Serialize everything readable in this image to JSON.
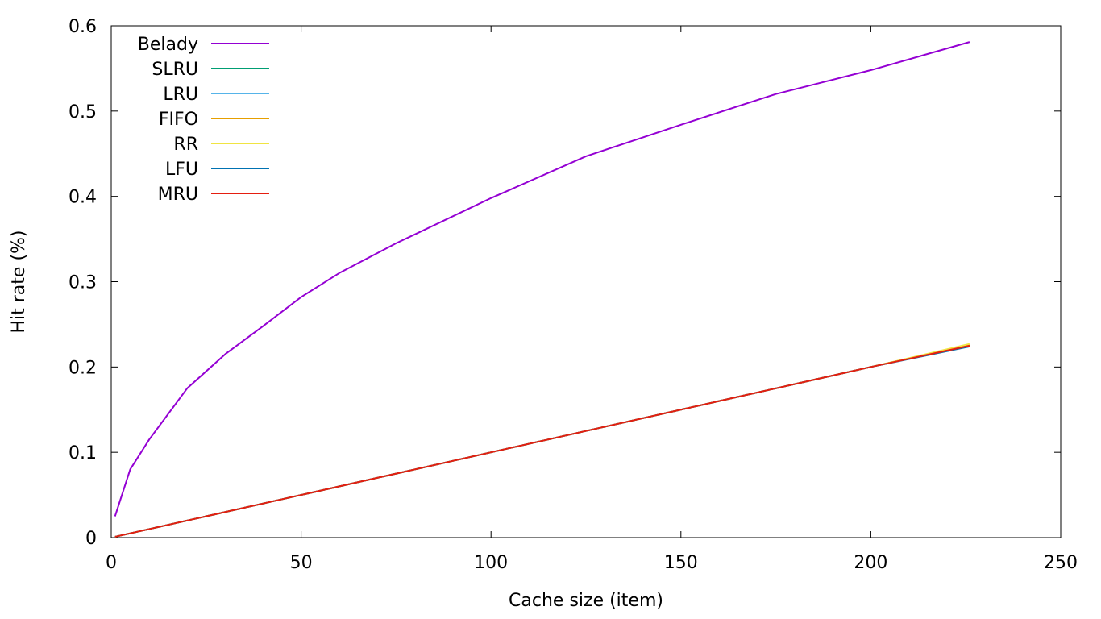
{
  "chart_data": {
    "type": "line",
    "title": "",
    "xlabel": "Cache size (item)",
    "ylabel": "Hit rate (%)",
    "xlim": [
      0,
      250
    ],
    "ylim": [
      0,
      0.6
    ],
    "xticks": [
      0,
      50,
      100,
      150,
      200,
      250
    ],
    "yticks": [
      0,
      0.1,
      0.2,
      0.3,
      0.4,
      0.5,
      0.6
    ],
    "xtick_labels": [
      "0",
      "50",
      "100",
      "150",
      "200",
      "250"
    ],
    "ytick_labels": [
      "0",
      "0.1",
      "0.2",
      "0.3",
      "0.4",
      "0.5",
      "0.6"
    ],
    "grid": false,
    "legend_position": "top-left",
    "x": [
      1,
      5,
      10,
      20,
      30,
      40,
      50,
      60,
      75,
      100,
      125,
      150,
      175,
      200,
      226
    ],
    "series": [
      {
        "name": "Belady",
        "color": "#9400d3",
        "values": [
          0.025,
          0.08,
          0.115,
          0.175,
          0.215,
          0.248,
          0.282,
          0.31,
          0.345,
          0.398,
          0.447,
          0.484,
          0.52,
          0.548,
          0.581
        ]
      },
      {
        "name": "SLRU",
        "color": "#009e73",
        "values": [
          0.001,
          0.005,
          0.01,
          0.02,
          0.03,
          0.04,
          0.05,
          0.06,
          0.075,
          0.1,
          0.125,
          0.15,
          0.175,
          0.2,
          0.226
        ]
      },
      {
        "name": "LRU",
        "color": "#56b4e9",
        "values": [
          0.001,
          0.005,
          0.01,
          0.02,
          0.03,
          0.04,
          0.05,
          0.06,
          0.075,
          0.1,
          0.125,
          0.15,
          0.175,
          0.2,
          0.226
        ]
      },
      {
        "name": "FIFO",
        "color": "#e69f00",
        "values": [
          0.001,
          0.005,
          0.01,
          0.02,
          0.03,
          0.04,
          0.05,
          0.06,
          0.075,
          0.1,
          0.125,
          0.15,
          0.175,
          0.2,
          0.226
        ]
      },
      {
        "name": "RR",
        "color": "#f0e442",
        "values": [
          0.001,
          0.005,
          0.01,
          0.02,
          0.03,
          0.04,
          0.05,
          0.06,
          0.075,
          0.1,
          0.125,
          0.15,
          0.175,
          0.2,
          0.227
        ]
      },
      {
        "name": "LFU",
        "color": "#0072b2",
        "values": [
          0.001,
          0.005,
          0.01,
          0.02,
          0.03,
          0.04,
          0.05,
          0.06,
          0.075,
          0.1,
          0.125,
          0.15,
          0.175,
          0.2,
          0.224
        ]
      },
      {
        "name": "MRU",
        "color": "#e51e10",
        "values": [
          0.001,
          0.005,
          0.01,
          0.02,
          0.03,
          0.04,
          0.05,
          0.06,
          0.075,
          0.1,
          0.125,
          0.15,
          0.175,
          0.2,
          0.225
        ]
      }
    ]
  }
}
